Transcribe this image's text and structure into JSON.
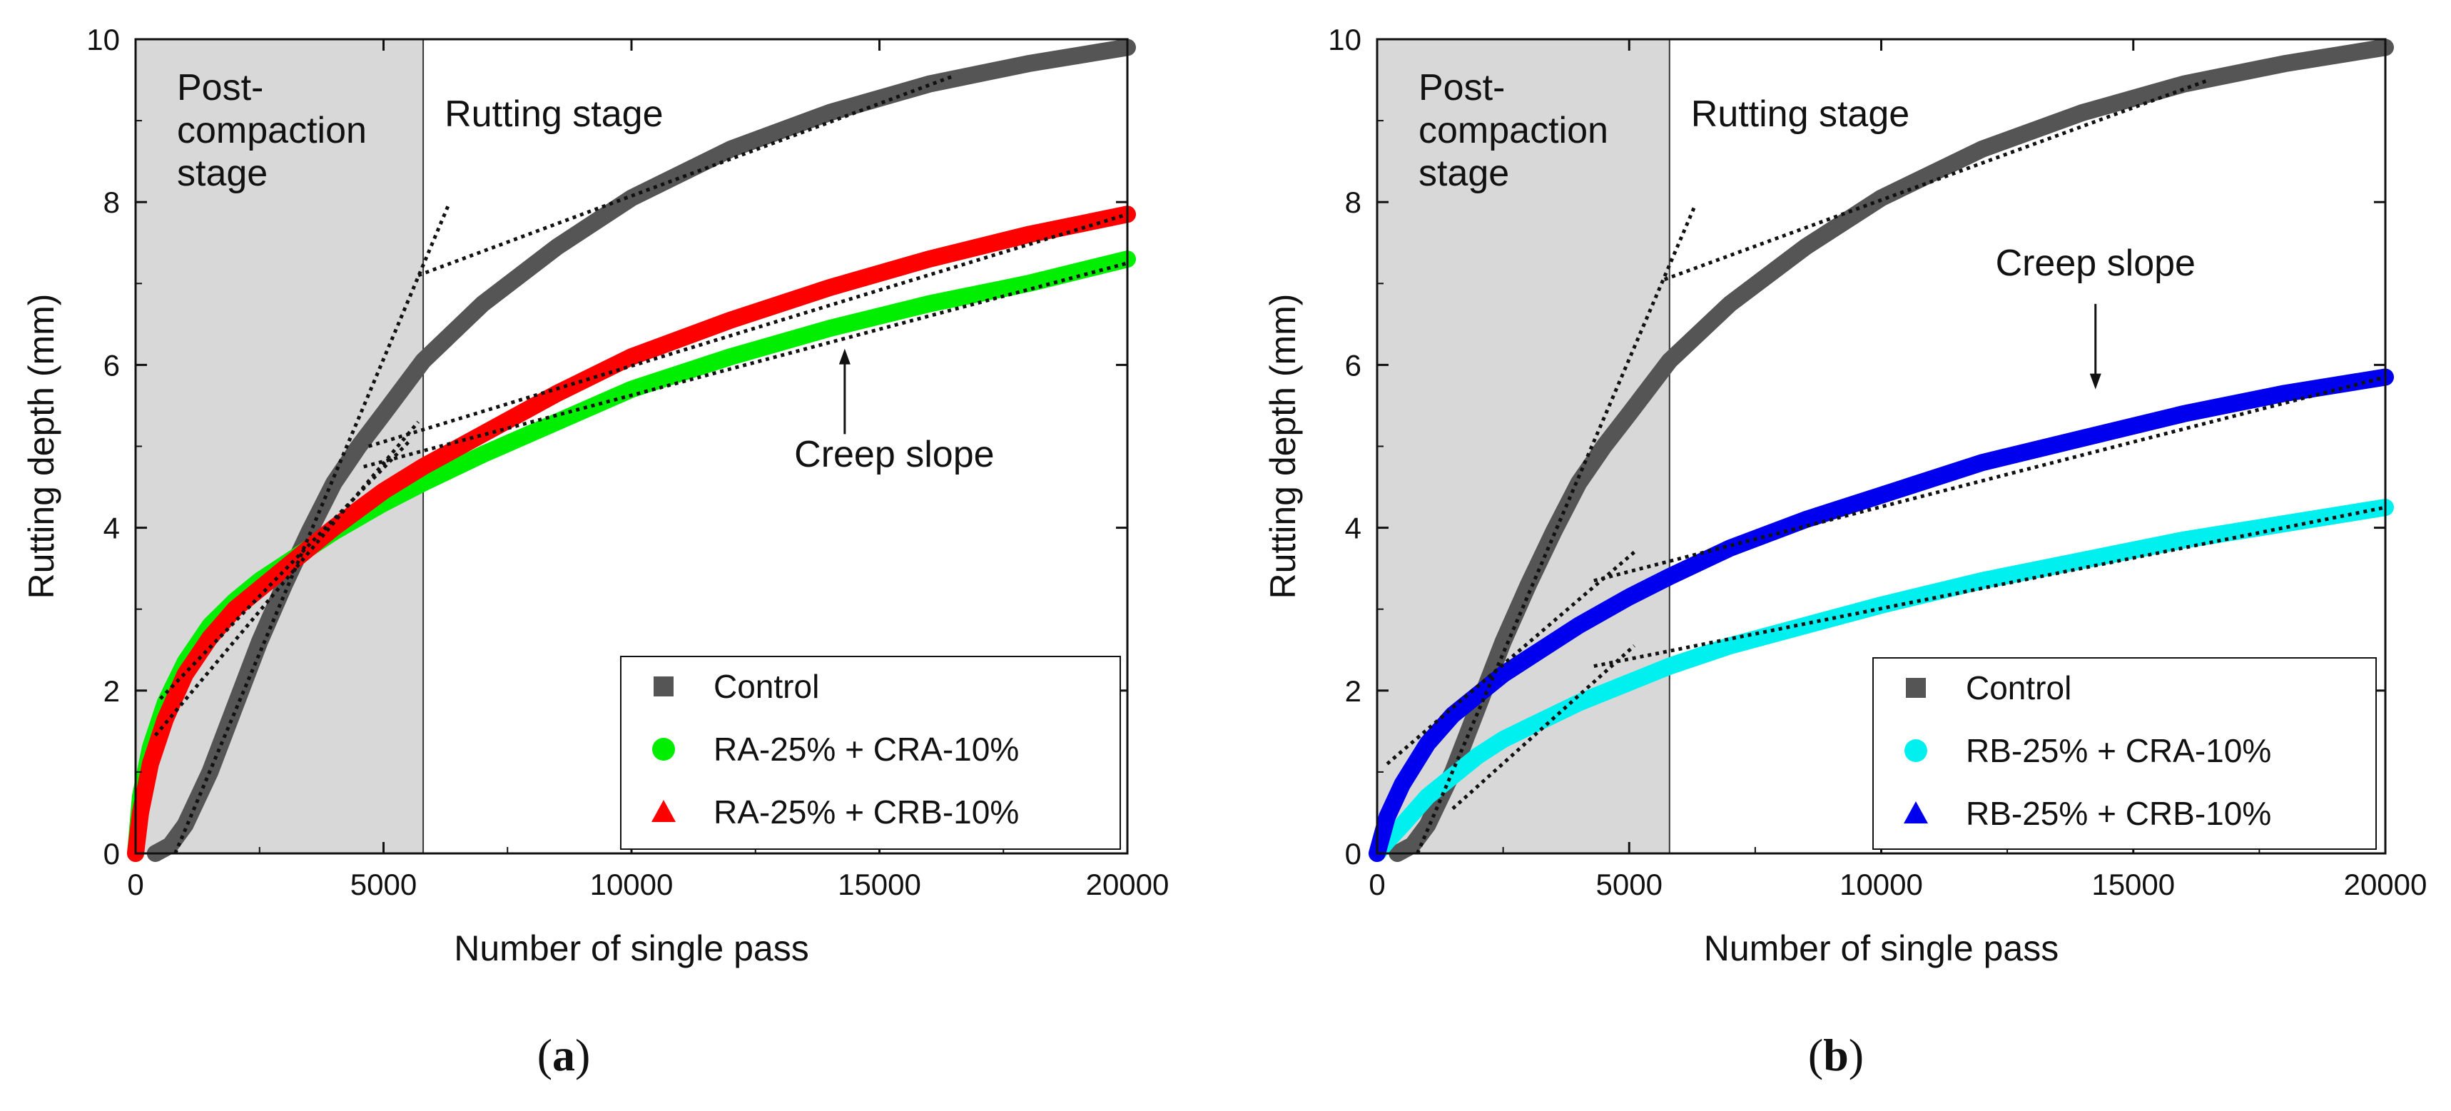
{
  "chart_data": [
    {
      "type": "line",
      "panel_label": "(a)",
      "panel_letter": "a",
      "xlabel": "Number of single pass",
      "ylabel": "Rutting depth (mm)",
      "xlim": [
        0,
        20000
      ],
      "ylim": [
        0,
        10
      ],
      "xticks": [
        0,
        5000,
        10000,
        15000,
        20000
      ],
      "yticks": [
        0,
        2,
        4,
        6,
        8,
        10
      ],
      "shaded_region": {
        "x_start": 0,
        "x_end": 5800,
        "color": "#d8d8d8"
      },
      "region_labels": {
        "post_compaction": [
          "Post-",
          "compaction",
          "stage"
        ],
        "rutting": "Rutting stage"
      },
      "annotation": {
        "text": "Creep slope",
        "arrow_direction": "up",
        "text_x": 15300,
        "text_y": 4.75,
        "arrow_from_y": 5.15,
        "arrow_to_y": 6.2
      },
      "legend": {
        "position": "bottom-right"
      },
      "series": [
        {
          "name": "Control",
          "marker": "square",
          "color": "#555555",
          "x": [
            400,
            700,
            1000,
            1500,
            2000,
            2500,
            3000,
            3500,
            4000,
            4500,
            5000,
            5800,
            7000,
            8500,
            10000,
            12000,
            14000,
            16000,
            18000,
            20000
          ],
          "y": [
            0,
            0.1,
            0.35,
            1.0,
            1.8,
            2.6,
            3.3,
            3.95,
            4.55,
            5.0,
            5.4,
            6.05,
            6.75,
            7.45,
            8.05,
            8.65,
            9.1,
            9.45,
            9.7,
            9.9
          ]
        },
        {
          "name": "RA-25% + CRA-10%",
          "marker": "circle",
          "color": "#00ee00",
          "x": [
            0,
            100,
            300,
            600,
            1000,
            1500,
            2000,
            2500,
            3000,
            3500,
            4000,
            5000,
            5800,
            7000,
            8500,
            10000,
            12000,
            14000,
            16000,
            18000,
            20000
          ],
          "y": [
            0,
            0.7,
            1.3,
            1.85,
            2.35,
            2.8,
            3.1,
            3.35,
            3.55,
            3.75,
            3.95,
            4.3,
            4.55,
            4.9,
            5.3,
            5.7,
            6.1,
            6.45,
            6.75,
            7.0,
            7.3
          ]
        },
        {
          "name": "RA-25% + CRB-10%",
          "marker": "triangle",
          "color": "#ff0000",
          "x": [
            0,
            100,
            300,
            600,
            1000,
            1500,
            2000,
            2500,
            3000,
            3500,
            4000,
            5000,
            5800,
            7000,
            8500,
            10000,
            12000,
            14000,
            16000,
            18000,
            20000
          ],
          "y": [
            0,
            0.5,
            1.1,
            1.65,
            2.2,
            2.65,
            3.0,
            3.25,
            3.5,
            3.75,
            4.0,
            4.45,
            4.75,
            5.15,
            5.65,
            6.1,
            6.55,
            6.95,
            7.3,
            7.6,
            7.85
          ]
        }
      ],
      "fit_lines": [
        {
          "x": [
            800,
            6300
          ],
          "y": [
            0,
            7.95
          ]
        },
        {
          "x": [
            5700,
            16500
          ],
          "y": [
            7.1,
            9.55
          ]
        },
        {
          "x": [
            400,
            5700
          ],
          "y": [
            1.45,
            5.3
          ]
        },
        {
          "x": [
            500,
            5500
          ],
          "y": [
            1.9,
            5.05
          ]
        },
        {
          "x": [
            4600,
            20000
          ],
          "y": [
            4.75,
            7.25
          ]
        },
        {
          "x": [
            4700,
            20000
          ],
          "y": [
            5.0,
            7.85
          ]
        }
      ]
    },
    {
      "type": "line",
      "panel_label": "(b)",
      "panel_letter": "b",
      "xlabel": "Number of single pass",
      "ylabel": "Rutting depth (mm)",
      "xlim": [
        0,
        20000
      ],
      "ylim": [
        0,
        10
      ],
      "xticks": [
        0,
        5000,
        10000,
        15000,
        20000
      ],
      "yticks": [
        0,
        2,
        4,
        6,
        8,
        10
      ],
      "shaded_region": {
        "x_start": 0,
        "x_end": 5800,
        "color": "#d8d8d8"
      },
      "region_labels": {
        "post_compaction": [
          "Post-",
          "compaction",
          "stage"
        ],
        "rutting": "Rutting stage"
      },
      "annotation": {
        "text": "Creep slope",
        "arrow_direction": "down",
        "text_x": 14250,
        "text_y": 7.1,
        "arrow_from_y": 6.75,
        "arrow_to_y": 5.7
      },
      "legend": {
        "position": "bottom-right"
      },
      "series": [
        {
          "name": "Control",
          "marker": "square",
          "color": "#555555",
          "x": [
            400,
            700,
            1000,
            1500,
            2000,
            2500,
            3000,
            3500,
            4000,
            4500,
            5000,
            5800,
            7000,
            8500,
            10000,
            12000,
            14000,
            16000,
            18000,
            20000
          ],
          "y": [
            0,
            0.1,
            0.35,
            1.0,
            1.8,
            2.6,
            3.3,
            3.95,
            4.55,
            5.0,
            5.4,
            6.05,
            6.75,
            7.45,
            8.05,
            8.65,
            9.1,
            9.45,
            9.7,
            9.9
          ]
        },
        {
          "name": "RB-25% + CRA-10%",
          "marker": "circle",
          "color": "#00f0f0",
          "x": [
            0,
            200,
            500,
            1000,
            1500,
            2000,
            2500,
            3000,
            4000,
            5000,
            5800,
            7000,
            8500,
            10000,
            12000,
            14000,
            16000,
            18000,
            20000
          ],
          "y": [
            0,
            0.15,
            0.35,
            0.7,
            0.95,
            1.2,
            1.4,
            1.55,
            1.85,
            2.1,
            2.3,
            2.55,
            2.8,
            3.05,
            3.35,
            3.6,
            3.85,
            4.05,
            4.25
          ]
        },
        {
          "name": "RB-25% + CRB-10%",
          "marker": "triangle",
          "color": "#0000ee",
          "x": [
            0,
            200,
            500,
            1000,
            1500,
            2000,
            2500,
            3000,
            4000,
            5000,
            5800,
            7000,
            8500,
            10000,
            12000,
            14000,
            16000,
            18000,
            20000
          ],
          "y": [
            0,
            0.45,
            0.85,
            1.35,
            1.7,
            1.95,
            2.2,
            2.4,
            2.8,
            3.15,
            3.4,
            3.75,
            4.1,
            4.4,
            4.8,
            5.1,
            5.4,
            5.65,
            5.85
          ]
        }
      ],
      "fit_lines": [
        {
          "x": [
            800,
            6300
          ],
          "y": [
            0,
            7.95
          ]
        },
        {
          "x": [
            5700,
            16500
          ],
          "y": [
            7.05,
            9.5
          ]
        },
        {
          "x": [
            200,
            5100
          ],
          "y": [
            1.1,
            3.7
          ]
        },
        {
          "x": [
            1500,
            5100
          ],
          "y": [
            0.55,
            2.55
          ]
        },
        {
          "x": [
            4300,
            20000
          ],
          "y": [
            3.35,
            5.85
          ]
        },
        {
          "x": [
            4300,
            20000
          ],
          "y": [
            2.3,
            4.25
          ]
        }
      ]
    }
  ]
}
